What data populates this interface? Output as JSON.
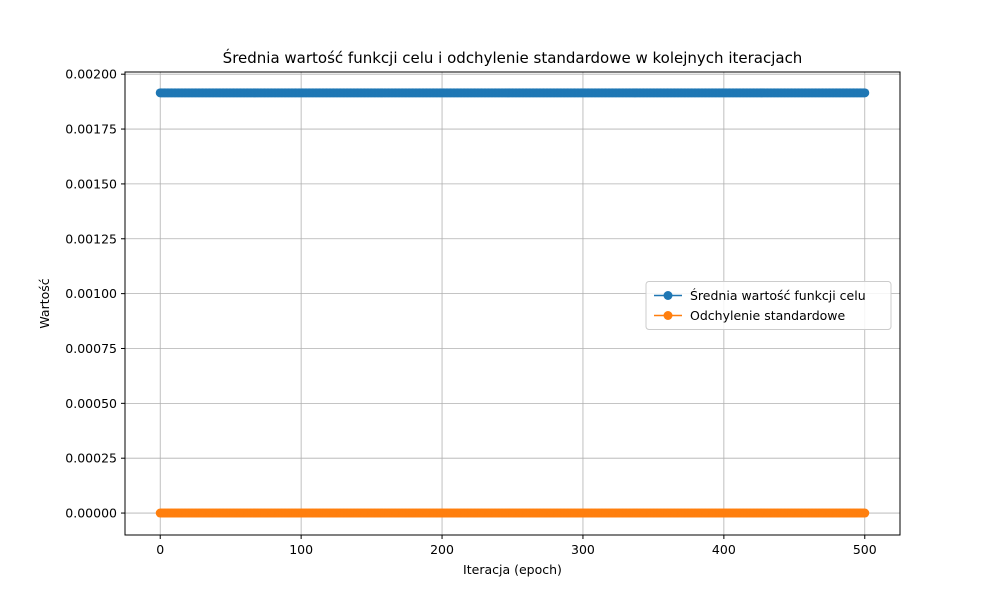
{
  "chart_data": {
    "type": "line",
    "title": "Średnia wartość funkcji celu i odchylenie standardowe w kolejnych iteracjach",
    "xlabel": "Iteracja (epoch)",
    "ylabel": "Wartość",
    "xlim": [
      -25,
      525
    ],
    "ylim": [
      -0.0001,
      0.00201
    ],
    "x_ticks": [
      0,
      100,
      200,
      300,
      400,
      500
    ],
    "y_ticks": [
      0.0,
      0.00025,
      0.0005,
      0.00075,
      0.001,
      0.00125,
      0.0015,
      0.00175,
      0.002
    ],
    "x_tick_labels": [
      "0",
      "100",
      "200",
      "300",
      "400",
      "500"
    ],
    "y_tick_labels": [
      "0.00000",
      "0.00025",
      "0.00050",
      "0.00075",
      "0.00100",
      "0.00125",
      "0.00150",
      "0.00175",
      "0.00200"
    ],
    "grid": true,
    "legend_position": "center-right",
    "x_start": 0,
    "x_end": 500,
    "x_step": 1,
    "series": [
      {
        "name": "Średnia wartość funkcji celu",
        "color": "#1f77b4",
        "marker": "circle",
        "value": 0.001915
      },
      {
        "name": "Odchylenie standardowe",
        "color": "#ff7f0e",
        "marker": "circle",
        "value": 0.0
      }
    ]
  }
}
